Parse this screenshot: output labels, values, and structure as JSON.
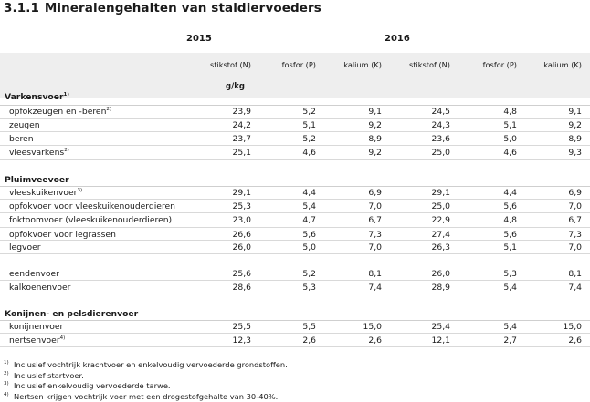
{
  "title": {
    "number": "3.1.1",
    "text": "Mineralengehalten van staldiervoeders"
  },
  "years": {
    "y2015": "2015",
    "y2016": "2016"
  },
  "columns": [
    "stikstof (N)",
    "fosfor (P)",
    "kalium (K)",
    "stikstof (N)",
    "fosfor (P)",
    "kalium (K)"
  ],
  "unit": "g/kg",
  "rows": [
    {
      "label": "Varkensvoer",
      "note": "1)",
      "section": true
    },
    {
      "label": "opfokzeugen en -beren",
      "note": "2)",
      "values": [
        "23,9",
        "5,2",
        "9,1",
        "24,5",
        "4,8",
        "9,1"
      ]
    },
    {
      "label": "zeugen",
      "values": [
        "24,2",
        "5,1",
        "9,2",
        "24,3",
        "5,1",
        "9,2"
      ]
    },
    {
      "label": "beren",
      "values": [
        "23,7",
        "5,2",
        "8,9",
        "23,6",
        "5,0",
        "8,9"
      ]
    },
    {
      "label": "vleesvarkens",
      "note": "2)",
      "values": [
        "25,1",
        "4,6",
        "9,2",
        "25,0",
        "4,6",
        "9,3"
      ]
    },
    {
      "label": "Pluimveevoer",
      "section": true
    },
    {
      "label": "vleeskuikenvoer",
      "note": "3)",
      "values": [
        "29,1",
        "4,4",
        "6,9",
        "29,1",
        "4,4",
        "6,9"
      ]
    },
    {
      "label": "opfokvoer voor vleeskuikenouderdieren",
      "values": [
        "25,3",
        "5,4",
        "7,0",
        "25,0",
        "5,6",
        "7,0"
      ]
    },
    {
      "label": "foktoomvoer (vleeskuikenouderdieren)",
      "values": [
        "23,0",
        "4,7",
        "6,7",
        "22,9",
        "4,8",
        "6,7"
      ]
    },
    {
      "label": "opfokvoer voor legrassen",
      "values": [
        "26,6",
        "5,6",
        "7,3",
        "27,4",
        "5,6",
        "7,3"
      ]
    },
    {
      "label": "legvoer",
      "values": [
        "26,0",
        "5,0",
        "7,0",
        "26,3",
        "5,1",
        "7,0"
      ]
    },
    {
      "label": "eendenvoer",
      "values": [
        "25,6",
        "5,2",
        "8,1",
        "26,0",
        "5,3",
        "8,1"
      ]
    },
    {
      "label": "kalkoenenvoer",
      "values": [
        "28,6",
        "5,3",
        "7,4",
        "28,9",
        "5,4",
        "7,4"
      ]
    },
    {
      "label": "Konijnen- en pelsdierenvoer",
      "section": true
    },
    {
      "label": "konijnenvoer",
      "values": [
        "25,5",
        "5,5",
        "15,0",
        "25,4",
        "5,4",
        "15,0"
      ]
    },
    {
      "label": "nertsenvoer",
      "note": "4)",
      "values": [
        "12,3",
        "2,6",
        "2,6",
        "12,1",
        "2,7",
        "2,6"
      ]
    }
  ],
  "footnotes": [
    {
      "mark": "1)",
      "text": "Inclusief vochtrijk krachtvoer en enkelvoudig vervoederde grondstoffen."
    },
    {
      "mark": "2)",
      "text": "Inclusief startvoer."
    },
    {
      "mark": "3)",
      "text": "Inclusief enkelvoudig vervoederde tarwe."
    },
    {
      "mark": "4)",
      "text": "Nertsen krijgen vochtrijk voer met een drogestofgehalte van 30-40%."
    }
  ]
}
